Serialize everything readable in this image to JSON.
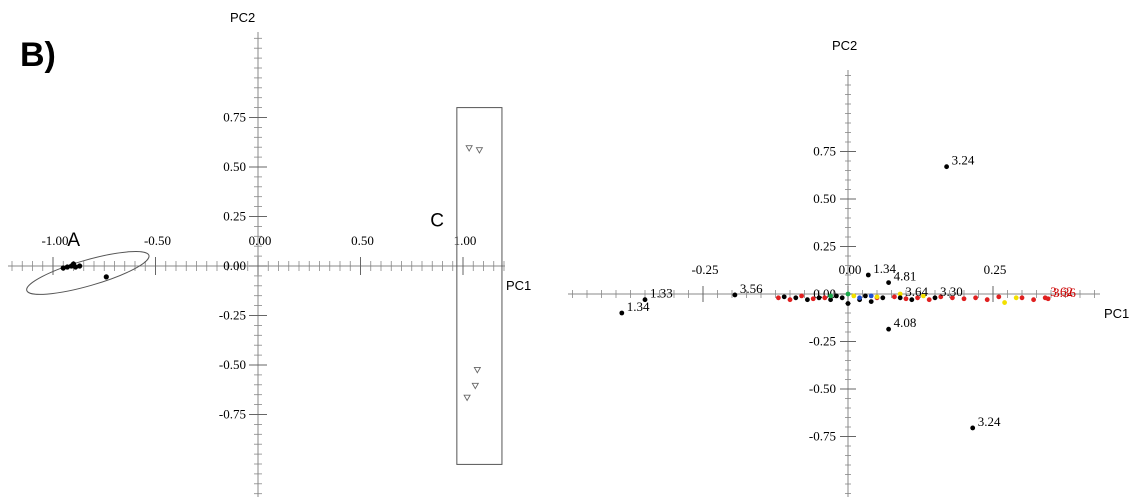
{
  "panel_label": "B)",
  "chart_data": [
    {
      "type": "scatter",
      "title": "",
      "xlabel": "PC1",
      "ylabel": "PC2",
      "xlim": [
        -1.25,
        1.2
      ],
      "ylim": [
        -0.75,
        0.8
      ],
      "x_ticks": [
        -1.0,
        -0.5,
        0.0,
        0.5,
        1.0
      ],
      "y_ticks": [
        0.75,
        0.5,
        0.25,
        0.0,
        -0.25,
        -0.5,
        -0.75
      ],
      "x_tick_labels": [
        "-1.00",
        "-0.50",
        "0.00",
        "0.50",
        "1.00"
      ],
      "y_tick_labels": [
        "0.75",
        "0.50",
        "0.25",
        "0.00",
        "-0.25",
        "-0.50",
        "-0.75"
      ],
      "annotations": [
        {
          "text": "A",
          "x": -0.93,
          "y": 0.1
        },
        {
          "text": "C",
          "x": 0.84,
          "y": 0.2
        }
      ],
      "series": [
        {
          "marker": "filled-circle",
          "color": "#000000",
          "points": [
            [
              -0.95,
              -0.01
            ],
            [
              -0.93,
              -0.005
            ],
            [
              -0.91,
              0.0
            ],
            [
              -0.89,
              -0.005
            ],
            [
              -0.87,
              0.0
            ],
            [
              -0.9,
              0.01
            ],
            [
              -0.74,
              -0.055
            ]
          ]
        },
        {
          "marker": "open-triangle-down",
          "color": "#666666",
          "points": [
            [
              1.03,
              0.595
            ],
            [
              1.08,
              0.585
            ],
            [
              1.07,
              -0.525
            ],
            [
              1.06,
              -0.605
            ],
            [
              1.02,
              -0.665
            ]
          ]
        }
      ],
      "groups": [
        {
          "label": "A",
          "shape": "ellipse",
          "center": [
            -0.83,
            -0.035
          ],
          "rx": 0.31,
          "ry": 0.065,
          "angle_deg": -16
        },
        {
          "label": "C",
          "shape": "rectangle",
          "x_range": [
            0.97,
            1.19
          ],
          "y_range": [
            -0.8,
            0.8
          ]
        }
      ]
    },
    {
      "type": "scatter",
      "title": "",
      "xlabel": "PC1",
      "ylabel": "PC2",
      "xlim": [
        -0.45,
        0.42
      ],
      "ylim": [
        -0.8,
        0.8
      ],
      "x_ticks": [
        -0.25,
        0.0,
        0.25
      ],
      "y_ticks": [
        0.75,
        0.5,
        0.25,
        0.0,
        -0.25,
        -0.5,
        -0.75
      ],
      "x_tick_labels": [
        "-0.25",
        "0.00",
        "0.25"
      ],
      "y_tick_labels": [
        "0.75",
        "0.50",
        "0.25",
        "0.00",
        "-0.25",
        "-0.50",
        "-0.75"
      ],
      "labeled_points": [
        {
          "label": "3.24",
          "x": 0.17,
          "y": 0.67,
          "color": "#000000"
        },
        {
          "label": "3.24",
          "x": 0.215,
          "y": -0.705,
          "color": "#000000"
        },
        {
          "label": "1.34",
          "x": 0.035,
          "y": 0.1,
          "color": "#000000"
        },
        {
          "label": "4.81",
          "x": 0.07,
          "y": 0.06,
          "color": "#000000"
        },
        {
          "label": "4.08",
          "x": 0.07,
          "y": -0.185,
          "color": "#000000"
        },
        {
          "label": "1.33",
          "x": -0.35,
          "y": -0.03,
          "color": "#000000"
        },
        {
          "label": "1.34",
          "x": -0.39,
          "y": -0.1,
          "color": "#000000"
        },
        {
          "label": "3.56",
          "x": -0.195,
          "y": -0.005,
          "color": "#000000"
        },
        {
          "label": "3.64",
          "x": 0.09,
          "y": -0.02,
          "color": "#000000"
        },
        {
          "label": "3.30",
          "x": 0.15,
          "y": -0.02,
          "color": "#000000"
        },
        {
          "label": "3.62",
          "x": 0.34,
          "y": -0.02,
          "color": "#cc0000"
        },
        {
          "label": "3.36",
          "x": 0.345,
          "y": -0.025,
          "color": "#cc0000"
        }
      ],
      "cluster_points": {
        "black": [
          [
            -0.09,
            -0.02
          ],
          [
            -0.07,
            -0.03
          ],
          [
            -0.05,
            -0.02
          ],
          [
            -0.03,
            -0.03
          ],
          [
            -0.01,
            -0.02
          ],
          [
            0.02,
            -0.03
          ],
          [
            0.04,
            -0.04
          ],
          [
            0.06,
            -0.02
          ],
          [
            -0.11,
            -0.015
          ],
          [
            0.11,
            -0.03
          ],
          [
            -0.02,
            -0.01
          ],
          [
            0.0,
            -0.05
          ],
          [
            0.03,
            -0.01
          ]
        ],
        "red": [
          [
            -0.12,
            -0.02
          ],
          [
            -0.1,
            -0.03
          ],
          [
            -0.08,
            -0.01
          ],
          [
            -0.06,
            -0.025
          ],
          [
            0.08,
            -0.015
          ],
          [
            0.1,
            -0.025
          ],
          [
            0.12,
            -0.02
          ],
          [
            0.14,
            -0.03
          ],
          [
            0.16,
            -0.015
          ],
          [
            0.18,
            -0.02
          ],
          [
            0.2,
            -0.025
          ],
          [
            0.22,
            -0.02
          ],
          [
            0.24,
            -0.03
          ],
          [
            0.26,
            -0.015
          ],
          [
            0.3,
            -0.02
          ],
          [
            0.32,
            -0.03
          ],
          [
            -0.04,
            -0.02
          ],
          [
            0.05,
            -0.02
          ]
        ],
        "yellow": [
          [
            0.01,
            -0.01
          ],
          [
            0.05,
            -0.015
          ],
          [
            0.09,
            0.0
          ],
          [
            0.13,
            -0.01
          ],
          [
            0.27,
            -0.045
          ],
          [
            0.29,
            -0.02
          ]
        ],
        "green": [
          [
            -0.03,
            -0.01
          ],
          [
            0.0,
            0.0
          ]
        ],
        "blue": [
          [
            0.02,
            -0.02
          ],
          [
            0.04,
            -0.01
          ]
        ]
      },
      "series_colors": {
        "black": "#000000",
        "red": "#e02020",
        "yellow": "#f2e000",
        "green": "#1aa84a",
        "blue": "#1f4fd0"
      }
    }
  ]
}
